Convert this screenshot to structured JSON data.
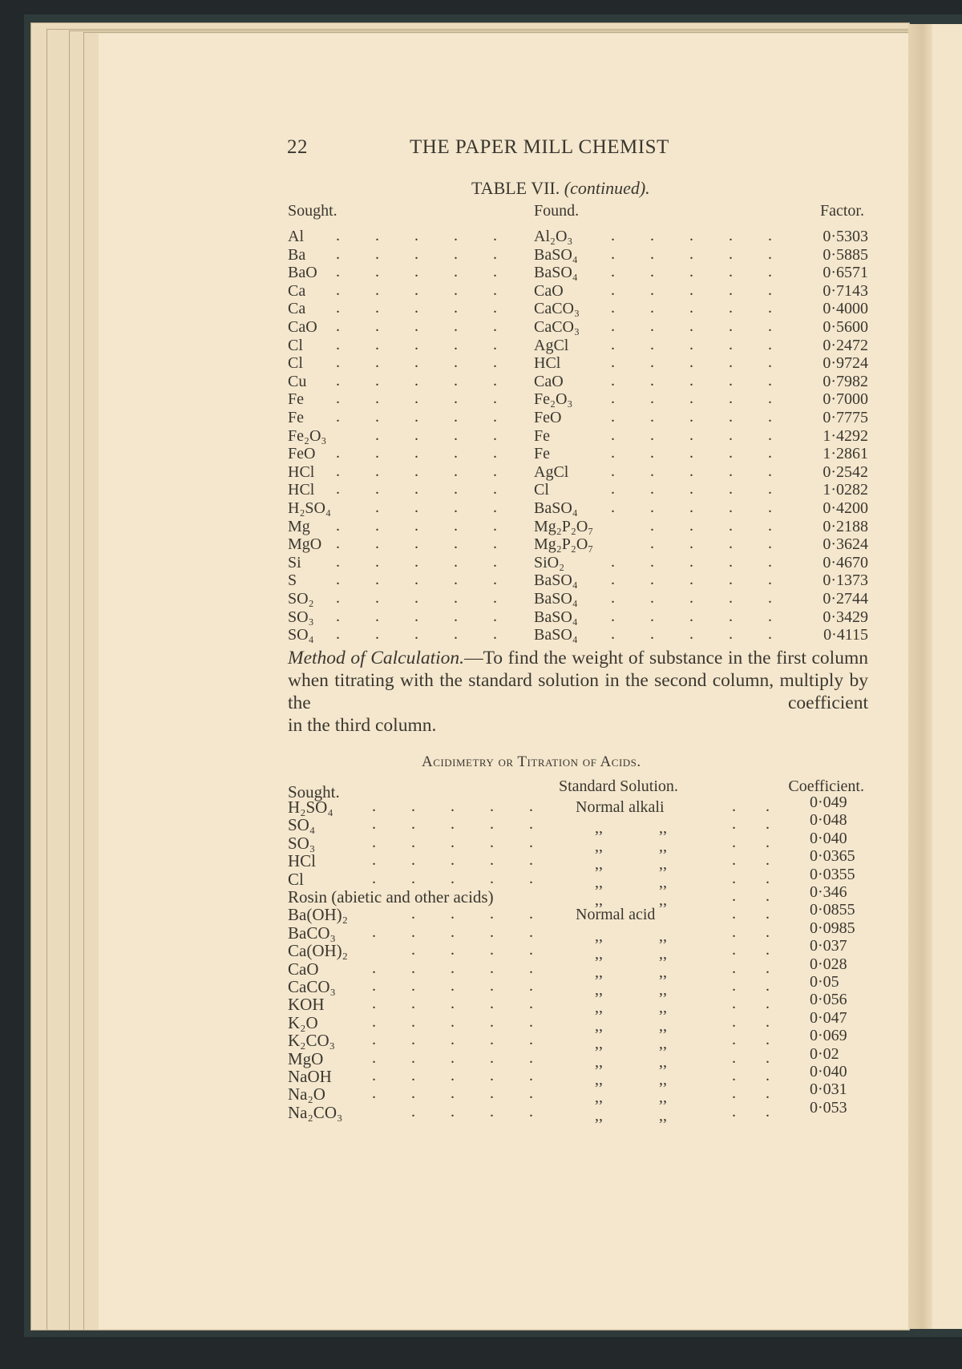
{
  "header": {
    "page_number": "22",
    "running_title": "THE PAPER MILL CHEMIST"
  },
  "table7": {
    "title": "TABLE VII.",
    "title_note": "(continued).",
    "columns": {
      "sought": "Sought.",
      "found": "Found.",
      "factor": "Factor."
    },
    "rows": [
      {
        "sought": "Al",
        "found": "Al₂O₃",
        "factor": "0·5303"
      },
      {
        "sought": "Ba",
        "found": "BaSO₄",
        "factor": "0·5885"
      },
      {
        "sought": "BaO",
        "found": "BaSO₄",
        "factor": "0·6571"
      },
      {
        "sought": "Ca",
        "found": "CaO",
        "factor": "0·7143"
      },
      {
        "sought": "Ca",
        "found": "CaCO₃",
        "factor": "0·4000"
      },
      {
        "sought": "CaO",
        "found": "CaCO₃",
        "factor": "0·5600"
      },
      {
        "sought": "Cl",
        "found": "AgCl",
        "factor": "0·2472"
      },
      {
        "sought": "Cl",
        "found": "HCl",
        "factor": "0·9724"
      },
      {
        "sought": "Cu",
        "found": "CaO",
        "factor": "0·7982"
      },
      {
        "sought": "Fe",
        "found": "Fe₂O₃",
        "factor": "0·7000"
      },
      {
        "sought": "Fe",
        "found": "FeO",
        "factor": "0·7775"
      },
      {
        "sought": "Fe₂O₃",
        "found": "Fe",
        "factor": "1·4292"
      },
      {
        "sought": "FeO",
        "found": "Fe",
        "factor": "1·2861"
      },
      {
        "sought": "HCl",
        "found": "AgCl",
        "factor": "0·2542"
      },
      {
        "sought": "HCl",
        "found": "Cl",
        "factor": "1·0282"
      },
      {
        "sought": "H₂SO₄",
        "found": "BaSO₄",
        "factor": "0·4200"
      },
      {
        "sought": "Mg",
        "found": "Mg₂P₂O₇",
        "factor": "0·2188"
      },
      {
        "sought": "MgO",
        "found": "Mg₂P₂O₇",
        "factor": "0·3624"
      },
      {
        "sought": "Si",
        "found": "SiO₂",
        "factor": "0·4670"
      },
      {
        "sought": "S",
        "found": "BaSO₄",
        "factor": "0·1373"
      },
      {
        "sought": "SO₂",
        "found": "BaSO₄",
        "factor": "0·2744"
      },
      {
        "sought": "SO₃",
        "found": "BaSO₄",
        "factor": "0·3429"
      },
      {
        "sought": "SO₄",
        "found": "BaSO₄",
        "factor": "0·4115"
      }
    ]
  },
  "method": {
    "heading": "Method of Calculation.",
    "lines": [
      "—To find the weight of substance",
      "in the first column when titrating with the standard",
      "solution in the second column, multiply by the coefficient",
      "in the third column."
    ]
  },
  "acidimetry": {
    "title": "Acidimetry or Titration of Acids.",
    "columns": {
      "sought": "Sought.",
      "solution": "Standard Solution.",
      "coefficient": "Coefficient."
    },
    "ditto": ",,",
    "rows": [
      {
        "sought": "H₂SO₄",
        "solution": "Normal alkali",
        "coefficient": "0·049"
      },
      {
        "sought": "SO₄",
        "solution": "",
        "coefficient": "0·048"
      },
      {
        "sought": "SO₃",
        "solution": "",
        "coefficient": "0·040"
      },
      {
        "sought": "HCl",
        "solution": "",
        "coefficient": "0·0365"
      },
      {
        "sought": "Cl",
        "solution": "",
        "coefficient": "0·0355"
      },
      {
        "sought": "Rosin (abietic and other acids)",
        "solution": "",
        "coefficient": "0·346"
      },
      {
        "sought": "Ba(OH)₂",
        "solution": "Normal acid",
        "coefficient": "0·0855"
      },
      {
        "sought": "BaCO₃",
        "solution": "",
        "coefficient": "0·0985"
      },
      {
        "sought": "Ca(OH)₂",
        "solution": "",
        "coefficient": "0·037"
      },
      {
        "sought": "CaO",
        "solution": "",
        "coefficient": "0·028"
      },
      {
        "sought": "CaCO₃",
        "solution": "",
        "coefficient": "0·05"
      },
      {
        "sought": "KOH",
        "solution": "",
        "coefficient": "0·056"
      },
      {
        "sought": "K₂O",
        "solution": "",
        "coefficient": "0·047"
      },
      {
        "sought": "K₂CO₃",
        "solution": "",
        "coefficient": "0·069"
      },
      {
        "sought": "MgO",
        "solution": "",
        "coefficient": "0·02"
      },
      {
        "sought": "NaOH",
        "solution": "",
        "coefficient": "0·040"
      },
      {
        "sought": "Na₂O",
        "solution": "",
        "coefficient": "0·031"
      },
      {
        "sought": "Na₂CO₃",
        "solution": "",
        "coefficient": "0·053"
      }
    ]
  },
  "colors": {
    "paper": "#f4e7cd",
    "ink": "#3b3730",
    "cover": "#23292a"
  }
}
